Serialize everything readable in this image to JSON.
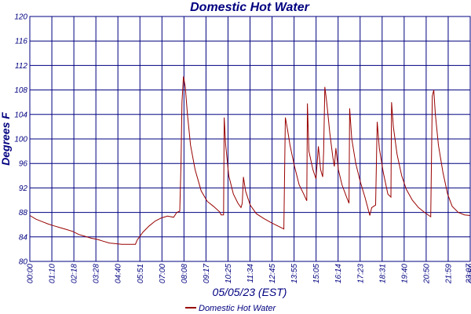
{
  "chart_data": {
    "type": "line",
    "title": "Domestic Hot Water",
    "xlabel": "05/05/23 (EST)",
    "ylabel": "Degrees F",
    "ylim": [
      80,
      120
    ],
    "yticks": [
      80,
      84,
      88,
      92,
      96,
      100,
      104,
      108,
      112,
      116,
      120
    ],
    "xticks": [
      "00:00",
      "01:10",
      "02:18",
      "03:28",
      "04:40",
      "05:51",
      "07:00",
      "08:08",
      "09:17",
      "10:25",
      "11:34",
      "12:45",
      "13:55",
      "15:05",
      "16:14",
      "17:23",
      "18:31",
      "19:40",
      "20:50",
      "21:59",
      "23:07",
      "23:59"
    ],
    "grid": true,
    "legend_position": "bottom",
    "colors": {
      "series": "#990000",
      "grid": "#000080",
      "text": "#000080"
    },
    "series": [
      {
        "name": "Domestic Hot Water",
        "points": [
          [
            "00:00",
            87.5
          ],
          [
            "00:20",
            86.9
          ],
          [
            "00:40",
            86.5
          ],
          [
            "01:00",
            86.1
          ],
          [
            "01:20",
            85.8
          ],
          [
            "01:40",
            85.5
          ],
          [
            "02:00",
            85.2
          ],
          [
            "02:20",
            84.9
          ],
          [
            "02:40",
            84.4
          ],
          [
            "03:00",
            84.1
          ],
          [
            "03:20",
            83.8
          ],
          [
            "03:40",
            83.6
          ],
          [
            "04:00",
            83.3
          ],
          [
            "04:20",
            83.0
          ],
          [
            "04:40",
            82.9
          ],
          [
            "05:00",
            82.8
          ],
          [
            "05:20",
            82.8
          ],
          [
            "05:45",
            82.8
          ],
          [
            "05:51",
            83.5
          ],
          [
            "06:10",
            84.8
          ],
          [
            "06:30",
            85.8
          ],
          [
            "06:50",
            86.6
          ],
          [
            "07:10",
            87.1
          ],
          [
            "07:30",
            87.4
          ],
          [
            "07:50",
            87.2
          ],
          [
            "08:00",
            88.0
          ],
          [
            "08:10",
            88.2
          ],
          [
            "08:14",
            96.0
          ],
          [
            "08:17",
            106.0
          ],
          [
            "08:22",
            110.2
          ],
          [
            "08:28",
            108.5
          ],
          [
            "08:35",
            104.0
          ],
          [
            "08:45",
            99.0
          ],
          [
            "09:00",
            95.0
          ],
          [
            "09:20",
            91.5
          ],
          [
            "09:40",
            89.8
          ],
          [
            "10:00",
            89.0
          ],
          [
            "10:20",
            88.1
          ],
          [
            "10:25",
            87.6
          ],
          [
            "10:33",
            87.6
          ],
          [
            "10:35",
            103.5
          ],
          [
            "10:40",
            99.0
          ],
          [
            "10:50",
            94.0
          ],
          [
            "11:05",
            91.0
          ],
          [
            "11:20",
            89.5
          ],
          [
            "11:30",
            88.8
          ],
          [
            "11:34",
            89.5
          ],
          [
            "11:38",
            93.8
          ],
          [
            "11:45",
            91.5
          ],
          [
            "12:00",
            89.2
          ],
          [
            "12:20",
            87.8
          ],
          [
            "12:45",
            87.0
          ],
          [
            "13:10",
            86.3
          ],
          [
            "13:30",
            85.8
          ],
          [
            "13:50",
            85.3
          ],
          [
            "13:55",
            103.5
          ],
          [
            "14:02",
            101.5
          ],
          [
            "14:10",
            99.0
          ],
          [
            "14:25",
            95.5
          ],
          [
            "14:40",
            92.5
          ],
          [
            "14:55",
            91.0
          ],
          [
            "15:05",
            89.9
          ],
          [
            "15:07",
            105.8
          ],
          [
            "15:12",
            98.0
          ],
          [
            "15:25",
            95.0
          ],
          [
            "15:35",
            93.5
          ],
          [
            "15:43",
            98.8
          ],
          [
            "15:50",
            95.0
          ],
          [
            "15:57",
            93.8
          ],
          [
            "16:00",
            98.0
          ],
          [
            "16:04",
            108.5
          ],
          [
            "16:10",
            106.0
          ],
          [
            "16:20",
            101.0
          ],
          [
            "16:30",
            97.0
          ],
          [
            "16:35",
            95.5
          ],
          [
            "16:40",
            98.5
          ],
          [
            "16:48",
            95.0
          ],
          [
            "17:00",
            92.5
          ],
          [
            "17:15",
            90.5
          ],
          [
            "17:23",
            89.5
          ],
          [
            "17:25",
            105.0
          ],
          [
            "17:32",
            100.0
          ],
          [
            "17:45",
            96.0
          ],
          [
            "18:00",
            93.0
          ],
          [
            "18:15",
            90.5
          ],
          [
            "18:31",
            87.5
          ],
          [
            "18:37",
            88.8
          ],
          [
            "18:50",
            89.2
          ],
          [
            "18:55",
            102.8
          ],
          [
            "19:02",
            98.5
          ],
          [
            "19:15",
            94.5
          ],
          [
            "19:30",
            91.0
          ],
          [
            "19:40",
            90.5
          ],
          [
            "19:42",
            106.0
          ],
          [
            "19:48",
            102.0
          ],
          [
            "20:00",
            97.5
          ],
          [
            "20:15",
            94.0
          ],
          [
            "20:30",
            91.8
          ],
          [
            "20:50",
            90.0
          ],
          [
            "21:10",
            88.8
          ],
          [
            "21:30",
            88.0
          ],
          [
            "21:50",
            87.3
          ],
          [
            "21:55",
            107.0
          ],
          [
            "22:00",
            108.0
          ],
          [
            "22:05",
            104.0
          ],
          [
            "22:15",
            99.0
          ],
          [
            "22:30",
            94.5
          ],
          [
            "22:45",
            91.0
          ],
          [
            "23:00",
            89.0
          ],
          [
            "23:20",
            88.0
          ],
          [
            "23:40",
            87.6
          ],
          [
            "23:59",
            87.5
          ]
        ]
      }
    ]
  }
}
